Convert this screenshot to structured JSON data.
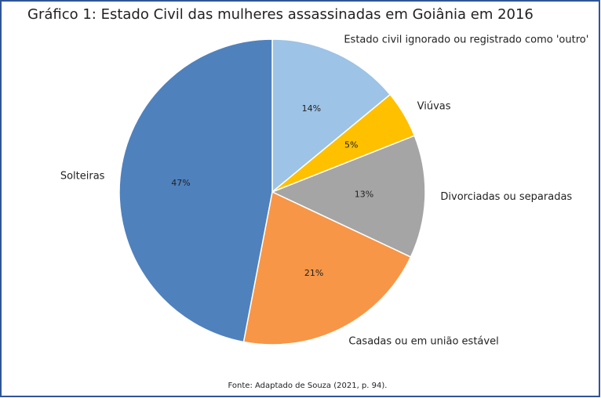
{
  "chart_data": {
    "type": "pie",
    "title": "Gráfico 1: Estado Civil das mulheres assassinadas em Goiânia em 2016",
    "categories": [
      "Estado civil ignorado ou registrado como 'outro'",
      "Viúvas",
      "Divorciadas ou separadas",
      "Casadas ou em união estável",
      "Solteiras"
    ],
    "values": [
      14,
      5,
      13,
      21,
      47
    ],
    "value_labels": [
      "14%",
      "5%",
      "13%",
      "21%",
      "47%"
    ],
    "colors": [
      "#9dc3e6",
      "#ffc000",
      "#a5a5a5",
      "#f79646",
      "#4f81bd"
    ],
    "source": "Fonte: Adaptado de Souza (2021, p. 94)."
  }
}
